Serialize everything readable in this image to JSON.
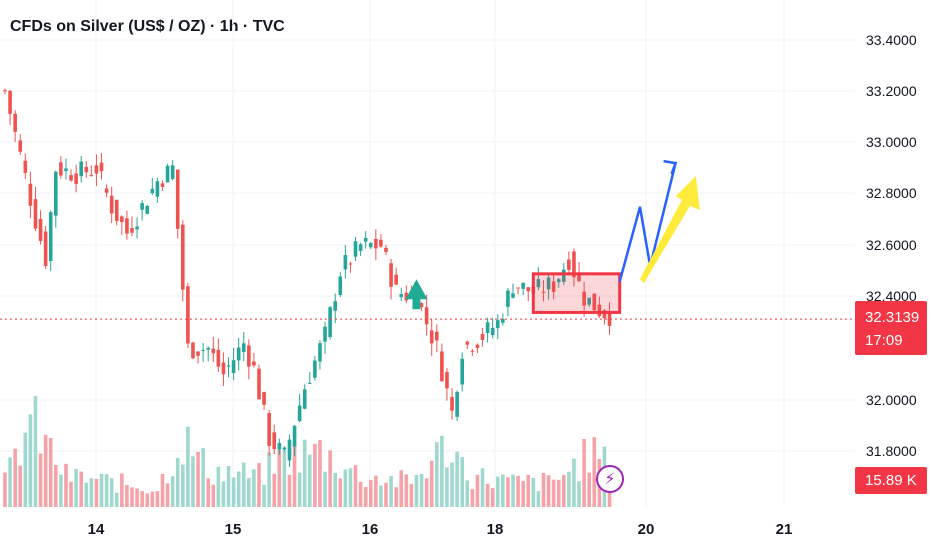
{
  "chart_data": {
    "type": "candlestick",
    "title": "CFDs on Silver (US$ / OZ) · 1h · TVC",
    "y_axis": {
      "ticks": [
        "33.4000",
        "33.2000",
        "33.0000",
        "32.8000",
        "32.6000",
        "32.4000",
        "32.0000",
        "31.8000"
      ],
      "ylim": [
        31.62,
        33.48
      ]
    },
    "x_axis": {
      "ticks": [
        "14",
        "15",
        "16",
        "18",
        "20",
        "21"
      ]
    },
    "last_price": "32.3139",
    "last_price_value": 32.3139,
    "countdown": "17:09",
    "volume_label": "15.89 K",
    "colors": {
      "up": "#26a69a",
      "down": "#ef5350",
      "up_vol": "#9fd8cf",
      "down_vol": "#f5a3a8",
      "box": "#f23645",
      "blue_arrow": "#2962ff",
      "yellow_arrow": "#ffeb3b"
    },
    "anchors": [
      {
        "bar": 0,
        "price": 33.2
      },
      {
        "bar": 3,
        "price": 32.95
      },
      {
        "bar": 6,
        "price": 32.7
      },
      {
        "bar": 8,
        "price": 32.55
      },
      {
        "bar": 10,
        "price": 32.9
      },
      {
        "bar": 14,
        "price": 32.88
      },
      {
        "bar": 18,
        "price": 32.9
      },
      {
        "bar": 21,
        "price": 32.75
      },
      {
        "bar": 24,
        "price": 32.65
      },
      {
        "bar": 27,
        "price": 32.75
      },
      {
        "bar": 30,
        "price": 32.85
      },
      {
        "bar": 33,
        "price": 32.9
      },
      {
        "bar": 36,
        "price": 32.2
      },
      {
        "bar": 40,
        "price": 32.2
      },
      {
        "bar": 43,
        "price": 32.1
      },
      {
        "bar": 47,
        "price": 32.22
      },
      {
        "bar": 49,
        "price": 32.12
      },
      {
        "bar": 52,
        "price": 31.85
      },
      {
        "bar": 55,
        "price": 31.78
      },
      {
        "bar": 59,
        "price": 32.05
      },
      {
        "bar": 63,
        "price": 32.25
      },
      {
        "bar": 66,
        "price": 32.5
      },
      {
        "bar": 70,
        "price": 32.6
      },
      {
        "bar": 74,
        "price": 32.6
      },
      {
        "bar": 77,
        "price": 32.42
      },
      {
        "bar": 81,
        "price": 32.4
      },
      {
        "bar": 85,
        "price": 32.2
      },
      {
        "bar": 88,
        "price": 31.95
      },
      {
        "bar": 90,
        "price": 32.2
      },
      {
        "bar": 94,
        "price": 32.25
      },
      {
        "bar": 97,
        "price": 32.3
      },
      {
        "bar": 100,
        "price": 32.45
      },
      {
        "bar": 104,
        "price": 32.42
      },
      {
        "bar": 108,
        "price": 32.45
      },
      {
        "bar": 111,
        "price": 32.55
      },
      {
        "bar": 114,
        "price": 32.4
      },
      {
        "bar": 117,
        "price": 32.35
      },
      {
        "bar": 119,
        "price": 32.33
      }
    ],
    "volume_anchors": [
      {
        "bar": 0,
        "vol": 0.2
      },
      {
        "bar": 5,
        "vol": 0.7
      },
      {
        "bar": 12,
        "vol": 0.25
      },
      {
        "bar": 30,
        "vol": 0.15
      },
      {
        "bar": 35,
        "vol": 0.55
      },
      {
        "bar": 40,
        "vol": 0.3
      },
      {
        "bar": 50,
        "vol": 0.25
      },
      {
        "bar": 55,
        "vol": 0.4
      },
      {
        "bar": 62,
        "vol": 0.45
      },
      {
        "bar": 70,
        "vol": 0.25
      },
      {
        "bar": 80,
        "vol": 0.2
      },
      {
        "bar": 87,
        "vol": 0.5
      },
      {
        "bar": 92,
        "vol": 0.25
      },
      {
        "bar": 100,
        "vol": 0.2
      },
      {
        "bar": 108,
        "vol": 0.2
      },
      {
        "bar": 116,
        "vol": 0.45
      },
      {
        "bar": 119,
        "vol": 0.3
      }
    ],
    "annotations": [
      {
        "type": "rectangle",
        "from_bar": 104,
        "to_bar": 121,
        "price_top": 32.49,
        "price_bottom": 32.34
      },
      {
        "type": "arrow",
        "color": "blue",
        "points": [
          {
            "bar": 121,
            "price": 32.46
          },
          {
            "bar": 125,
            "price": 32.75
          },
          {
            "bar": 127,
            "price": 32.52
          },
          {
            "bar": 132,
            "price": 32.92
          }
        ]
      },
      {
        "type": "arrow",
        "color": "yellow",
        "points": [
          {
            "bar": 125,
            "price": 32.47
          },
          {
            "bar": 136,
            "price": 32.87
          }
        ]
      },
      {
        "type": "arrow",
        "color": "green",
        "points": [
          {
            "bar": 81,
            "price": 32.43
          },
          {
            "bar": 81,
            "price": 32.46
          }
        ]
      }
    ]
  }
}
